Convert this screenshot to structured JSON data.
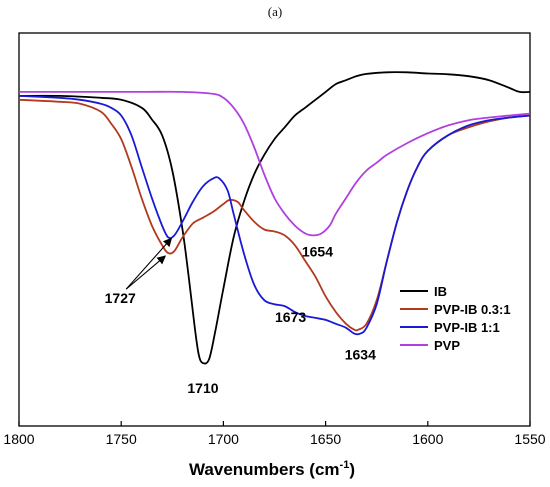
{
  "panel_label": "(a)",
  "chart_data": {
    "type": "line",
    "title": "",
    "xlabel": "Wavenumbers (cm",
    "xlabel_sup": "-1",
    "xlabel_tail": ")",
    "ylabel": "",
    "xlim": [
      1800,
      1550
    ],
    "x_reversed": true,
    "ylim": [
      0,
      100
    ],
    "y_ticks_shown": false,
    "x_ticks": [
      1800,
      1750,
      1700,
      1650,
      1600,
      1550
    ],
    "x_tick_labels": [
      "1800",
      "1750",
      "1700",
      "1650",
      "1600",
      "1550"
    ],
    "legend_placement": "lower-right",
    "series": [
      {
        "name": "IB",
        "color": "#000000",
        "points": [
          [
            1800,
            84
          ],
          [
            1780,
            84
          ],
          [
            1760,
            83.5
          ],
          [
            1750,
            83
          ],
          [
            1740,
            81
          ],
          [
            1735,
            78
          ],
          [
            1730,
            74
          ],
          [
            1725,
            65
          ],
          [
            1720,
            50
          ],
          [
            1717,
            38
          ],
          [
            1714,
            25
          ],
          [
            1712,
            18
          ],
          [
            1710,
            16
          ],
          [
            1707,
            17
          ],
          [
            1704,
            24
          ],
          [
            1700,
            35
          ],
          [
            1695,
            48
          ],
          [
            1690,
            57
          ],
          [
            1685,
            64
          ],
          [
            1680,
            69
          ],
          [
            1675,
            73
          ],
          [
            1670,
            76
          ],
          [
            1665,
            79
          ],
          [
            1660,
            81
          ],
          [
            1655,
            83
          ],
          [
            1650,
            85
          ],
          [
            1645,
            87
          ],
          [
            1640,
            88
          ],
          [
            1635,
            89
          ],
          [
            1630,
            89.6
          ],
          [
            1620,
            90
          ],
          [
            1610,
            90
          ],
          [
            1600,
            89.7
          ],
          [
            1590,
            89.5
          ],
          [
            1580,
            89
          ],
          [
            1570,
            88
          ],
          [
            1560,
            86
          ],
          [
            1555,
            85
          ],
          [
            1550,
            85
          ]
        ]
      },
      {
        "name": "PVP-IB 0.3:1",
        "color": "#b23a1e",
        "points": [
          [
            1800,
            83
          ],
          [
            1780,
            82.5
          ],
          [
            1770,
            82
          ],
          [
            1760,
            80
          ],
          [
            1755,
            77
          ],
          [
            1750,
            73
          ],
          [
            1745,
            66
          ],
          [
            1740,
            58
          ],
          [
            1735,
            51
          ],
          [
            1730,
            46
          ],
          [
            1727,
            44
          ],
          [
            1724,
            44.5
          ],
          [
            1720,
            48
          ],
          [
            1715,
            51.5
          ],
          [
            1710,
            53
          ],
          [
            1705,
            54.5
          ],
          [
            1700,
            56.5
          ],
          [
            1697,
            57.5
          ],
          [
            1693,
            57
          ],
          [
            1690,
            55
          ],
          [
            1685,
            52
          ],
          [
            1680,
            50
          ],
          [
            1675,
            49.5
          ],
          [
            1670,
            48.5
          ],
          [
            1665,
            46
          ],
          [
            1660,
            42
          ],
          [
            1655,
            38
          ],
          [
            1650,
            33
          ],
          [
            1645,
            29
          ],
          [
            1640,
            26
          ],
          [
            1636,
            24.5
          ],
          [
            1634,
            24.5
          ],
          [
            1630,
            26
          ],
          [
            1625,
            32
          ],
          [
            1620,
            42
          ],
          [
            1615,
            52
          ],
          [
            1610,
            60
          ],
          [
            1605,
            66
          ],
          [
            1600,
            70
          ],
          [
            1590,
            74
          ],
          [
            1580,
            76
          ],
          [
            1570,
            77.5
          ],
          [
            1560,
            78.5
          ],
          [
            1550,
            79
          ]
        ]
      },
      {
        "name": "PVP-IB 1:1",
        "color": "#1a1ad6",
        "points": [
          [
            1800,
            84
          ],
          [
            1780,
            83.5
          ],
          [
            1770,
            83
          ],
          [
            1760,
            82
          ],
          [
            1755,
            81
          ],
          [
            1750,
            79
          ],
          [
            1745,
            74
          ],
          [
            1740,
            66
          ],
          [
            1735,
            58
          ],
          [
            1730,
            51
          ],
          [
            1727,
            48
          ],
          [
            1724,
            48.5
          ],
          [
            1720,
            52
          ],
          [
            1715,
            57
          ],
          [
            1710,
            61
          ],
          [
            1705,
            63
          ],
          [
            1702,
            63
          ],
          [
            1698,
            60
          ],
          [
            1695,
            54
          ],
          [
            1690,
            44
          ],
          [
            1685,
            36
          ],
          [
            1680,
            32
          ],
          [
            1675,
            31
          ],
          [
            1670,
            30.5
          ],
          [
            1665,
            29
          ],
          [
            1660,
            28
          ],
          [
            1655,
            27.5
          ],
          [
            1650,
            27
          ],
          [
            1645,
            26
          ],
          [
            1640,
            25
          ],
          [
            1636,
            23.5
          ],
          [
            1633,
            23.5
          ],
          [
            1630,
            25
          ],
          [
            1625,
            31
          ],
          [
            1620,
            42
          ],
          [
            1615,
            52
          ],
          [
            1610,
            60
          ],
          [
            1605,
            66
          ],
          [
            1600,
            70
          ],
          [
            1590,
            74
          ],
          [
            1580,
            76.5
          ],
          [
            1570,
            77.8
          ],
          [
            1560,
            78.5
          ],
          [
            1550,
            79
          ]
        ]
      },
      {
        "name": "PVP",
        "color": "#b040e0",
        "points": [
          [
            1800,
            85
          ],
          [
            1760,
            85
          ],
          [
            1740,
            85
          ],
          [
            1720,
            85
          ],
          [
            1705,
            84.5
          ],
          [
            1700,
            83.5
          ],
          [
            1695,
            81
          ],
          [
            1690,
            77
          ],
          [
            1685,
            71
          ],
          [
            1680,
            64
          ],
          [
            1675,
            58
          ],
          [
            1670,
            54
          ],
          [
            1665,
            51
          ],
          [
            1660,
            49
          ],
          [
            1656,
            48.5
          ],
          [
            1652,
            49
          ],
          [
            1648,
            51
          ],
          [
            1645,
            54
          ],
          [
            1640,
            58
          ],
          [
            1635,
            62
          ],
          [
            1630,
            65
          ],
          [
            1625,
            67
          ],
          [
            1620,
            69
          ],
          [
            1610,
            72
          ],
          [
            1600,
            74.5
          ],
          [
            1590,
            76.5
          ],
          [
            1580,
            77.8
          ],
          [
            1570,
            78.5
          ],
          [
            1560,
            79
          ],
          [
            1550,
            79.5
          ]
        ]
      }
    ],
    "annotations": [
      {
        "text": "1727",
        "x": 1727,
        "y": 44,
        "arrows": [
          [
            1727,
            44
          ],
          [
            1724,
            48.5
          ]
        ]
      },
      {
        "text": "1710",
        "x": 1710,
        "y": 16
      },
      {
        "text": "1673",
        "x": 1673,
        "y": 31
      },
      {
        "text": "1634",
        "x": 1634,
        "y": 23.5
      },
      {
        "text": "1654",
        "x": 1654,
        "y": 48.5
      }
    ]
  }
}
